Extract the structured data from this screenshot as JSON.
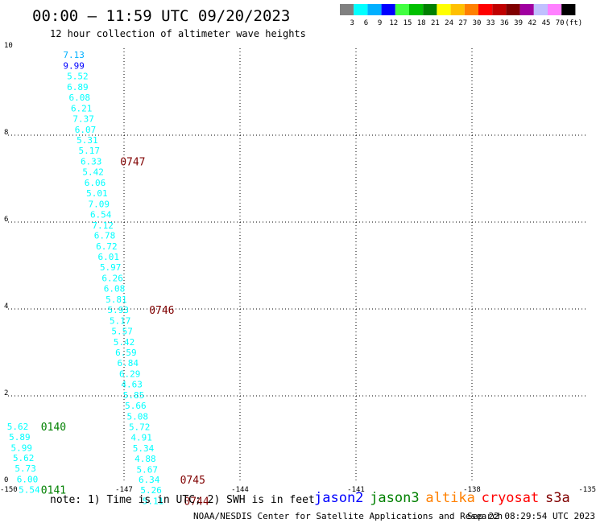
{
  "header": {
    "title": "00:00 – 11:59 UTC 09/20/2023",
    "subtitle": "12 hour collection of altimeter wave heights"
  },
  "colorbar": {
    "colors": [
      "#808080",
      "#00ffff",
      "#00b0ff",
      "#0000ff",
      "#40ff40",
      "#00c000",
      "#008000",
      "#ffff00",
      "#ffc000",
      "#ff8000",
      "#ff0000",
      "#c00000",
      "#800000",
      "#a000a0",
      "#c0c0ff",
      "#ff80ff",
      "#000000"
    ],
    "ticks": [
      "3",
      "6",
      "9",
      "12",
      "15",
      "18",
      "21",
      "24",
      "27",
      "30",
      "33",
      "36",
      "39",
      "42",
      "45",
      "70",
      "(ft)"
    ]
  },
  "chart_data": {
    "type": "scatter",
    "xlim": [
      -150,
      -135
    ],
    "ylim": [
      0,
      10
    ],
    "x_ticks": [
      "-150",
      "-147",
      "-144",
      "-141",
      "-138",
      "-135"
    ],
    "y_ticks": [
      "0",
      "2",
      "4",
      "6",
      "8",
      "10"
    ],
    "grid": true,
    "points": [
      {
        "x": -148.3,
        "y": 9.85,
        "label": "7.13",
        "color": "#00b0ff"
      },
      {
        "x": -148.3,
        "y": 9.6,
        "label": "9.99",
        "color": "#0000ff"
      },
      {
        "x": -148.2,
        "y": 9.36,
        "label": "5.52",
        "color": "#00ffff"
      },
      {
        "x": -148.2,
        "y": 9.11,
        "label": "6.89",
        "color": "#00ffff"
      },
      {
        "x": -148.15,
        "y": 8.87,
        "label": "6.08",
        "color": "#00ffff"
      },
      {
        "x": -148.1,
        "y": 8.62,
        "label": "6.21",
        "color": "#00ffff"
      },
      {
        "x": -148.05,
        "y": 8.38,
        "label": "7.37",
        "color": "#00ffff"
      },
      {
        "x": -148.0,
        "y": 8.13,
        "label": "6.07",
        "color": "#00ffff"
      },
      {
        "x": -147.95,
        "y": 7.89,
        "label": "5.31",
        "color": "#00ffff"
      },
      {
        "x": -147.9,
        "y": 7.65,
        "label": "5.17",
        "color": "#00ffff"
      },
      {
        "x": -147.85,
        "y": 7.4,
        "label": "6.33",
        "color": "#00ffff"
      },
      {
        "x": -147.8,
        "y": 7.16,
        "label": "5.42",
        "color": "#00ffff"
      },
      {
        "x": -147.75,
        "y": 6.91,
        "label": "6.06",
        "color": "#00ffff"
      },
      {
        "x": -147.7,
        "y": 6.67,
        "label": "5.01",
        "color": "#00ffff"
      },
      {
        "x": -147.65,
        "y": 6.42,
        "label": "7.09",
        "color": "#00ffff"
      },
      {
        "x": -147.6,
        "y": 6.18,
        "label": "6.54",
        "color": "#00ffff"
      },
      {
        "x": -147.55,
        "y": 5.93,
        "label": "7.12",
        "color": "#00ffff"
      },
      {
        "x": -147.5,
        "y": 5.69,
        "label": "6.78",
        "color": "#00ffff"
      },
      {
        "x": -147.45,
        "y": 5.44,
        "label": "6.72",
        "color": "#00ffff"
      },
      {
        "x": -147.4,
        "y": 5.2,
        "label": "6.01",
        "color": "#00ffff"
      },
      {
        "x": -147.35,
        "y": 4.96,
        "label": "5.97",
        "color": "#00ffff"
      },
      {
        "x": -147.3,
        "y": 4.71,
        "label": "6.26",
        "color": "#00ffff"
      },
      {
        "x": -147.25,
        "y": 4.47,
        "label": "6.08",
        "color": "#00ffff"
      },
      {
        "x": -147.2,
        "y": 4.22,
        "label": "5.81",
        "color": "#00ffff"
      },
      {
        "x": -147.15,
        "y": 3.98,
        "label": "5.93",
        "color": "#00ffff"
      },
      {
        "x": -147.1,
        "y": 3.73,
        "label": "5.17",
        "color": "#00ffff"
      },
      {
        "x": -147.05,
        "y": 3.49,
        "label": "5.57",
        "color": "#00ffff"
      },
      {
        "x": -147.0,
        "y": 3.24,
        "label": "5.42",
        "color": "#00ffff"
      },
      {
        "x": -146.95,
        "y": 3.0,
        "label": "6.59",
        "color": "#00ffff"
      },
      {
        "x": -146.9,
        "y": 2.76,
        "label": "6.84",
        "color": "#00ffff"
      },
      {
        "x": -146.85,
        "y": 2.51,
        "label": "6.29",
        "color": "#00ffff"
      },
      {
        "x": -146.8,
        "y": 2.27,
        "label": "4.63",
        "color": "#00ffff"
      },
      {
        "x": -146.75,
        "y": 2.02,
        "label": "5.85",
        "color": "#00ffff"
      },
      {
        "x": -146.7,
        "y": 1.78,
        "label": "5.66",
        "color": "#00ffff"
      },
      {
        "x": -146.65,
        "y": 1.53,
        "label": "5.08",
        "color": "#00ffff"
      },
      {
        "x": -146.6,
        "y": 1.29,
        "label": "5.72",
        "color": "#00ffff"
      },
      {
        "x": -146.55,
        "y": 1.05,
        "label": "4.91",
        "color": "#00ffff"
      },
      {
        "x": -146.5,
        "y": 0.8,
        "label": "5.34",
        "color": "#00ffff"
      },
      {
        "x": -146.45,
        "y": 0.56,
        "label": "4.88",
        "color": "#00ffff"
      },
      {
        "x": -146.4,
        "y": 0.31,
        "label": "5.67",
        "color": "#00ffff"
      },
      {
        "x": -146.35,
        "y": 0.07,
        "label": "6.34",
        "color": "#00ffff"
      },
      {
        "x": -146.3,
        "y": -0.17,
        "label": "5.26",
        "color": "#00ffff"
      },
      {
        "x": -146.25,
        "y": -0.42,
        "label": "5.11",
        "color": "#00ffff"
      },
      {
        "x": -149.75,
        "y": 1.3,
        "label": "5.62",
        "color": "#00ffff"
      },
      {
        "x": -149.7,
        "y": 1.06,
        "label": "5.89",
        "color": "#00ffff"
      },
      {
        "x": -149.65,
        "y": 0.81,
        "label": "5.99",
        "color": "#00ffff"
      },
      {
        "x": -149.6,
        "y": 0.57,
        "label": "5.62",
        "color": "#00ffff"
      },
      {
        "x": -149.55,
        "y": 0.33,
        "label": "5.73",
        "color": "#00ffff"
      },
      {
        "x": -149.5,
        "y": 0.08,
        "label": "6.00",
        "color": "#00ffff"
      },
      {
        "x": -149.45,
        "y": -0.16,
        "label": "5.54",
        "color": "#00ffff"
      }
    ],
    "annotations": [
      {
        "x": -147.1,
        "y": 7.4,
        "label": "0747",
        "color": "#800000"
      },
      {
        "x": -146.35,
        "y": 3.98,
        "label": "0746",
        "color": "#800000"
      },
      {
        "x": -145.55,
        "y": 0.07,
        "label": "0745",
        "color": "#800000"
      },
      {
        "x": -145.45,
        "y": -0.42,
        "label": "0744",
        "color": "#800000"
      },
      {
        "x": -149.15,
        "y": 1.3,
        "label": "0140",
        "color": "#008000"
      },
      {
        "x": -149.15,
        "y": -0.16,
        "label": "0141",
        "color": "#008000"
      }
    ]
  },
  "footer": {
    "note": "note: 1) Time is in UTC; 2) SWH is in feet",
    "legend": [
      {
        "label": "jason2",
        "color": "#0000ff"
      },
      {
        "label": "jason3",
        "color": "#008000"
      },
      {
        "label": "altika",
        "color": "#ff8000"
      },
      {
        "label": "cryosat",
        "color": "#ff0000"
      },
      {
        "label": "s3a",
        "color": "#800000"
      }
    ],
    "credit_left": "NOAA/NESDIS Center for Satellite Applications and Research",
    "credit_right": "Sep 22 08:29:54 UTC 2023"
  }
}
